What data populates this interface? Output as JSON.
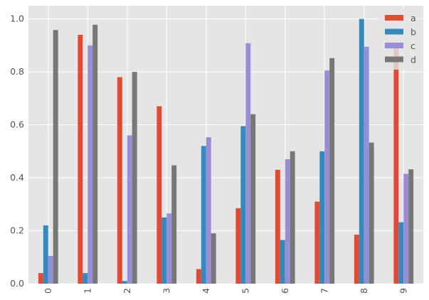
{
  "chart_data": {
    "type": "bar",
    "title": "",
    "xlabel": "",
    "ylabel": "",
    "categories": [
      "0",
      "1",
      "2",
      "3",
      "4",
      "5",
      "6",
      "7",
      "8",
      "9"
    ],
    "series": [
      {
        "name": "a",
        "color": "#E24A33",
        "values": [
          0.04,
          0.94,
          0.78,
          0.67,
          0.055,
          0.285,
          0.43,
          0.31,
          0.185,
          0.905
        ]
      },
      {
        "name": "b",
        "color": "#348ABD",
        "values": [
          0.22,
          0.04,
          0.01,
          0.25,
          0.52,
          0.595,
          0.165,
          0.5,
          1.0,
          0.232
        ]
      },
      {
        "name": "c",
        "color": "#988ED5",
        "values": [
          0.105,
          0.9,
          0.56,
          0.265,
          0.553,
          0.908,
          0.47,
          0.805,
          0.895,
          0.415
        ]
      },
      {
        "name": "d",
        "color": "#777777",
        "values": [
          0.958,
          0.978,
          0.8,
          0.447,
          0.19,
          0.64,
          0.5,
          0.852,
          0.533,
          0.432
        ]
      }
    ],
    "ylim": [
      0,
      1.05
    ],
    "yticks": [
      0.0,
      0.2,
      0.4,
      0.6,
      0.8,
      1.0
    ],
    "ytick_labels": [
      "0.0",
      "0.2",
      "0.4",
      "0.6",
      "0.8",
      "1.0"
    ],
    "grid": true,
    "legend_position": "top-right",
    "style": {
      "background": "#E5E5E5",
      "grid_color": "#FFFFFF"
    }
  }
}
